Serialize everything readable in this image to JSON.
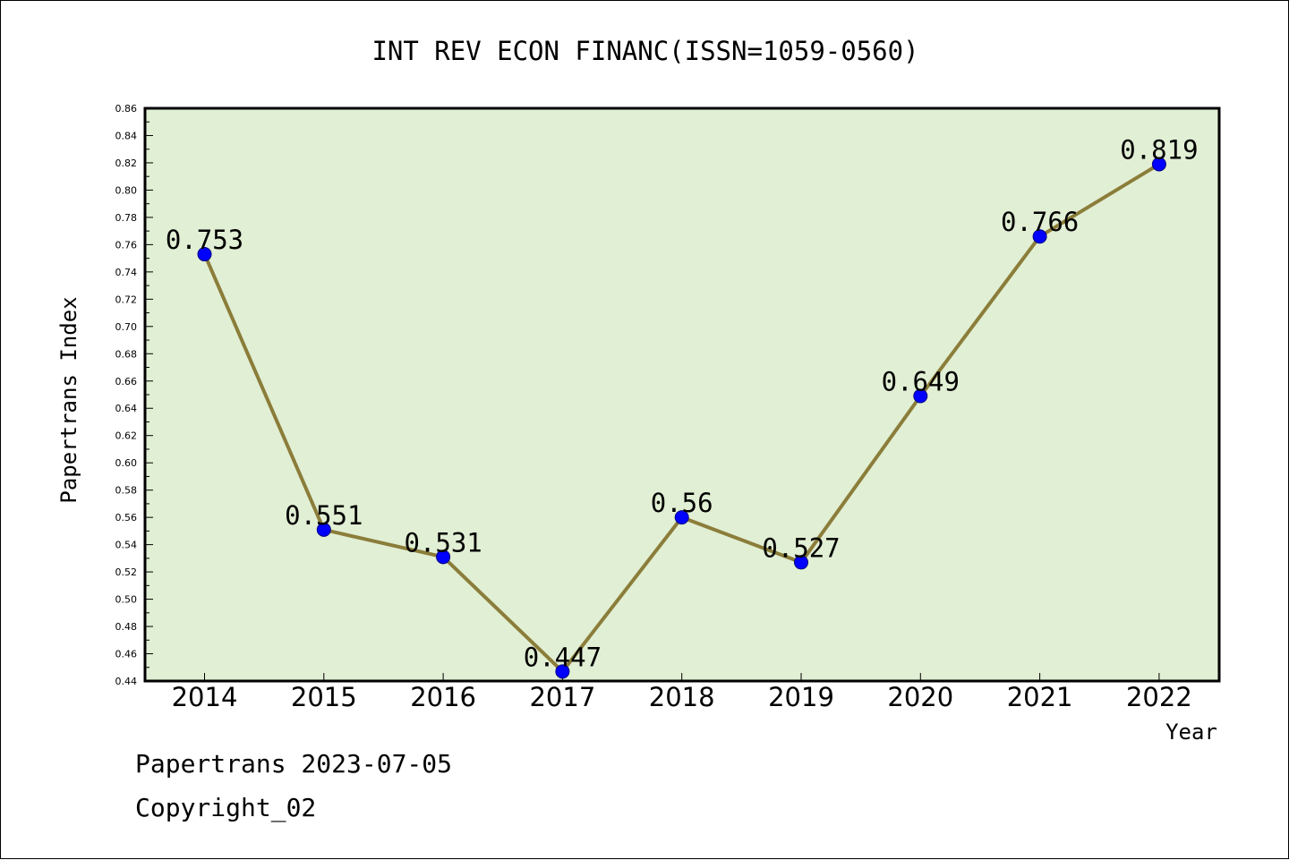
{
  "chart_data": {
    "type": "line",
    "title": "INT REV ECON FINANC(ISSN=1059-0560)",
    "xlabel": "Year",
    "ylabel": "Papertrans Index",
    "categories": [
      "2014",
      "2015",
      "2016",
      "2017",
      "2018",
      "2019",
      "2020",
      "2021",
      "2022"
    ],
    "series": [
      {
        "values": [
          0.753,
          0.551,
          0.531,
          0.447,
          0.56,
          0.527,
          0.649,
          0.766,
          0.819
        ],
        "labels": [
          "0.753",
          "0.551",
          "0.531",
          "0.447",
          "0.56",
          "0.527",
          "0.649",
          "0.766",
          "0.819"
        ]
      }
    ],
    "ylim": [
      0.44,
      0.86
    ],
    "yticks": [
      "0.44",
      "0.46",
      "0.48",
      "0.50",
      "0.52",
      "0.54",
      "0.56",
      "0.58",
      "0.60",
      "0.62",
      "0.64",
      "0.66",
      "0.68",
      "0.70",
      "0.72",
      "0.74",
      "0.76",
      "0.78",
      "0.80",
      "0.82",
      "0.84",
      "0.86"
    ],
    "grid": false,
    "colors": {
      "plot_background": "#e1efd4",
      "line": "#8b7d3a",
      "marker_fill": "#0000ff",
      "marker_edge": "#000080"
    }
  },
  "footer": {
    "line1": "Papertrans 2023-07-05",
    "line2": "Copyright_02"
  }
}
